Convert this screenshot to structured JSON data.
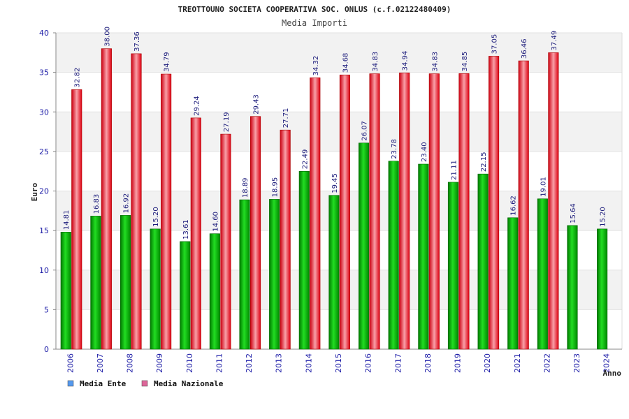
{
  "chart_data": {
    "type": "bar",
    "title": "TREOTTOUNO SOCIETA COOPERATIVA SOC. ONLUS (c.f.02122480409)",
    "subtitle": "Media Importi",
    "xlabel": "Anno",
    "ylabel": "Euro",
    "ylim": [
      0,
      40
    ],
    "yticks": [
      0,
      5,
      10,
      15,
      20,
      25,
      30,
      35,
      40
    ],
    "grid": true,
    "legend_position": "bottom-left",
    "categories": [
      "2006",
      "2007",
      "2008",
      "2009",
      "2010",
      "2011",
      "2012",
      "2013",
      "2014",
      "2015",
      "2016",
      "2017",
      "2018",
      "2019",
      "2020",
      "2021",
      "2022",
      "2023",
      "2024"
    ],
    "series": [
      {
        "name": "Media Ente",
        "color": "#00bb00",
        "legend_color": "#5599ee",
        "values": [
          14.81,
          16.83,
          16.92,
          15.2,
          13.61,
          14.6,
          18.89,
          18.95,
          22.49,
          19.45,
          26.07,
          23.78,
          23.4,
          21.11,
          22.15,
          16.62,
          19.01,
          15.64,
          15.2
        ],
        "labels": [
          "14.81",
          "16.83",
          "16.92",
          "15.20",
          "13.61",
          "14.60",
          "18.89",
          "18.95",
          "22.49",
          "19.45",
          "26.07",
          "23.78",
          "23.40",
          "21.11",
          "22.15",
          "16.62",
          "19.01",
          "15.64",
          "15.20"
        ]
      },
      {
        "name": "Media Nazionale",
        "color": "#ee1122",
        "legend_color": "#dd6699",
        "values": [
          32.82,
          38.0,
          37.36,
          34.79,
          29.24,
          27.19,
          29.43,
          27.71,
          34.32,
          34.68,
          34.83,
          34.94,
          34.83,
          34.85,
          37.05,
          36.46,
          37.49,
          null,
          null
        ],
        "labels": [
          "32.82",
          "38.00",
          "37.36",
          "34.79",
          "29.24",
          "27.19",
          "29.43",
          "27.71",
          "34.32",
          "34.68",
          "34.83",
          "34.94",
          "34.83",
          "34.85",
          "37.05",
          "36.46",
          "37.49",
          null,
          null
        ]
      }
    ]
  }
}
